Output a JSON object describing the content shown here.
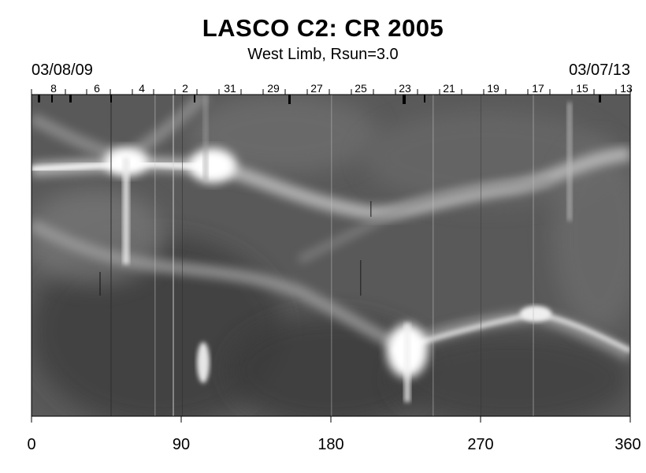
{
  "title": "LASCO C2: CR 2005",
  "subtitle": "West Limb, Rsun=3.0",
  "date_left": "03/08/09",
  "date_right": "03/07/13",
  "top_ticks": [
    "8",
    "6",
    "4",
    "2",
    "31",
    "29",
    "27",
    "25",
    "23",
    "21",
    "19",
    "17",
    "15",
    "13"
  ],
  "bottom_ticks": [
    "0",
    "90",
    "180",
    "270",
    "360"
  ],
  "colors": {
    "background": "#ffffff",
    "plot_base": "#5a5a5a",
    "text": "#000000"
  }
}
